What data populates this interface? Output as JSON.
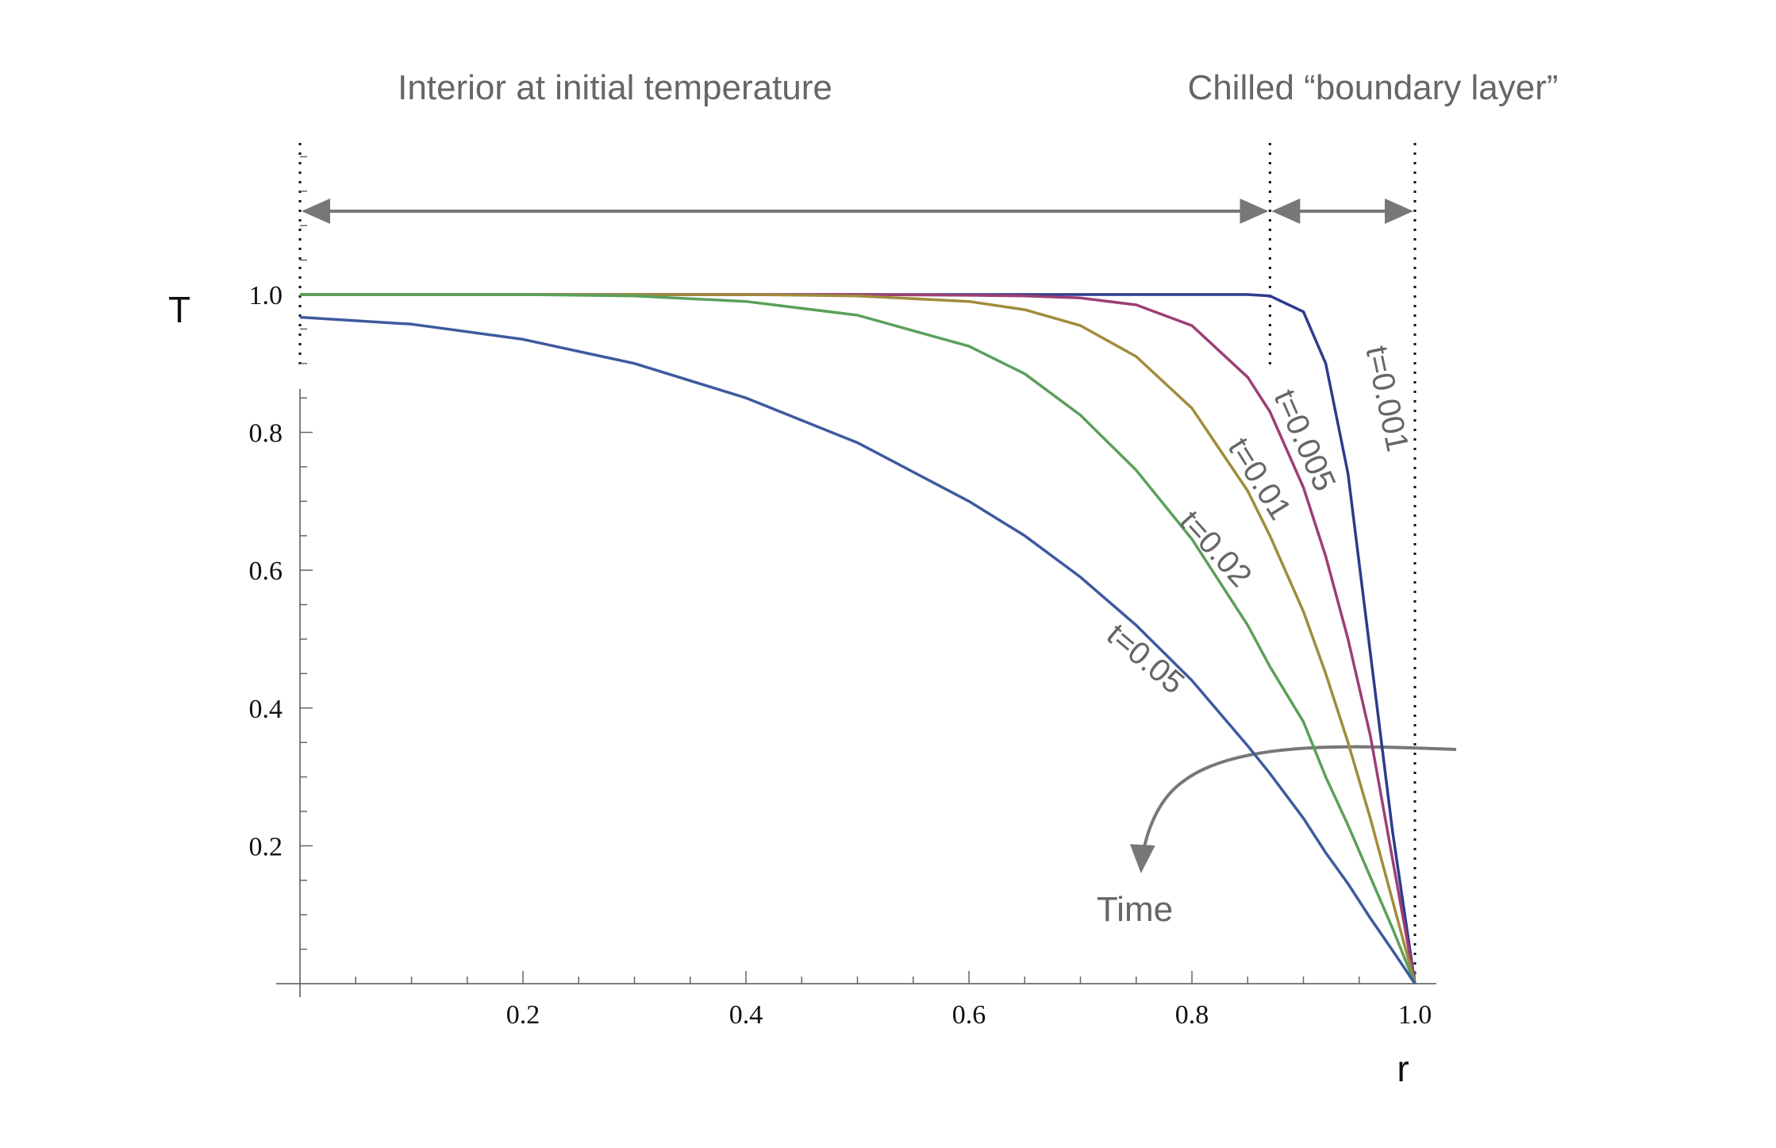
{
  "chart_data": {
    "type": "line",
    "title": "",
    "xlabel": "r",
    "ylabel": "T",
    "xlim": [
      0,
      1
    ],
    "ylim": [
      0,
      1
    ],
    "x_ticks": [
      0.2,
      0.4,
      0.6,
      0.8,
      1.0
    ],
    "x_tick_labels": [
      "0.2",
      "0.4",
      "0.6",
      "0.8",
      "1.0"
    ],
    "y_ticks": [
      0.2,
      0.4,
      0.6,
      0.8,
      1.0
    ],
    "y_tick_labels": [
      "0.2",
      "0.4",
      "0.6",
      "0.8",
      "1.0"
    ],
    "grid": false,
    "x": [
      0,
      0.1,
      0.2,
      0.3,
      0.4,
      0.5,
      0.6,
      0.65,
      0.7,
      0.75,
      0.8,
      0.85,
      0.87,
      0.9,
      0.92,
      0.94,
      0.96,
      0.98,
      1.0
    ],
    "series": [
      {
        "name": "t=0.001",
        "color": "#2e3a8c",
        "values": [
          1,
          1,
          1,
          1,
          1,
          1,
          1,
          1,
          1,
          1,
          1,
          1,
          0.998,
          0.975,
          0.9,
          0.74,
          0.48,
          0.22,
          0
        ]
      },
      {
        "name": "t=0.005",
        "color": "#9c3f74",
        "values": [
          1,
          1,
          1,
          1,
          1,
          1,
          0.999,
          0.998,
          0.995,
          0.985,
          0.955,
          0.88,
          0.83,
          0.72,
          0.62,
          0.5,
          0.36,
          0.18,
          0
        ]
      },
      {
        "name": "t=0.01",
        "color": "#a08c3c",
        "values": [
          1,
          1,
          1,
          1,
          1,
          0.998,
          0.99,
          0.978,
          0.955,
          0.91,
          0.835,
          0.715,
          0.65,
          0.54,
          0.45,
          0.35,
          0.24,
          0.12,
          0
        ]
      },
      {
        "name": "t=0.02",
        "color": "#5aa05a",
        "values": [
          1,
          1,
          1,
          0.998,
          0.99,
          0.97,
          0.925,
          0.885,
          0.825,
          0.745,
          0.645,
          0.52,
          0.46,
          0.38,
          0.3,
          0.23,
          0.155,
          0.08,
          0
        ]
      },
      {
        "name": "t=0.05",
        "color": "#3e5a9e",
        "values": [
          0.967,
          0.957,
          0.935,
          0.9,
          0.85,
          0.785,
          0.7,
          0.65,
          0.59,
          0.52,
          0.44,
          0.345,
          0.305,
          0.24,
          0.19,
          0.145,
          0.095,
          0.048,
          0
        ]
      }
    ],
    "annotations": {
      "interior": "Interior at initial temperature",
      "boundary": "Chilled “boundary layer”",
      "time": "Time",
      "boundary_r": 0.87
    }
  }
}
